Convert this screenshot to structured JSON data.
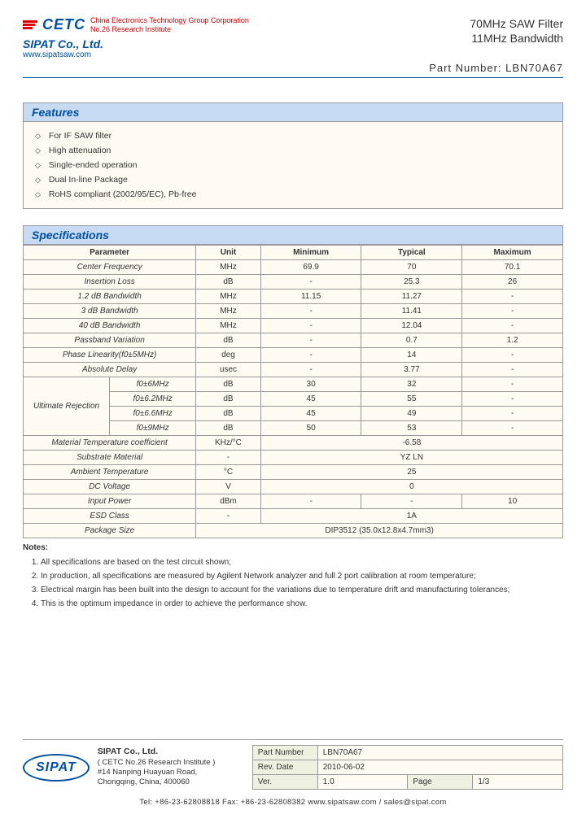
{
  "header": {
    "cetc_name": "CETC",
    "cetc_desc1": "China Electronics Technology Group Corporation",
    "cetc_desc2": "No.26 Research Institute",
    "sipat": "SIPAT Co., Ltd.",
    "url": "www.sipatsaw.com",
    "product_line1": "70MHz SAW Filter",
    "product_line2": "11MHz Bandwidth",
    "part_number_label": "Part Number: LBN70A67"
  },
  "features": {
    "title": "Features",
    "items": [
      "For IF SAW filter",
      "High attenuation",
      "Single-ended operation",
      "Dual In-line Package",
      "RoHS compliant (2002/95/EC), Pb-free"
    ]
  },
  "specs": {
    "title": "Specifications",
    "headers": [
      "Parameter",
      "Unit",
      "Minimum",
      "Typical",
      "Maximum"
    ],
    "rows": [
      {
        "param": "Center Frequency",
        "unit": "MHz",
        "min": "69.9",
        "typ": "70",
        "max": "70.1"
      },
      {
        "param": "Insertion Loss",
        "unit": "dB",
        "min": "-",
        "typ": "25.3",
        "max": "26"
      },
      {
        "param": "1.2 dB Bandwidth",
        "unit": "MHz",
        "min": "11.15",
        "typ": "11.27",
        "max": "-"
      },
      {
        "param": "3 dB Bandwidth",
        "unit": "MHz",
        "min": "-",
        "typ": "11.41",
        "max": "-"
      },
      {
        "param": "40 dB Bandwidth",
        "unit": "MHz",
        "min": "-",
        "typ": "12.04",
        "max": "-"
      },
      {
        "param": "Passband Variation",
        "unit": "dB",
        "min": "-",
        "typ": "0.7",
        "max": "1.2"
      },
      {
        "param": "Phase Linearity(f0±5MHz)",
        "unit": "deg",
        "min": "-",
        "typ": "14",
        "max": "-"
      },
      {
        "param": "Absolute Delay",
        "unit": "usec",
        "min": "-",
        "typ": "3.77",
        "max": "-"
      }
    ],
    "ultimate_rejection": {
      "label": "Ultimate Rejection",
      "subs": [
        {
          "sub": "f0±6MHz",
          "unit": "dB",
          "min": "30",
          "typ": "32",
          "max": "-"
        },
        {
          "sub": "f0±6.2MHz",
          "unit": "dB",
          "min": "45",
          "typ": "55",
          "max": "-"
        },
        {
          "sub": "f0±6.6MHz",
          "unit": "dB",
          "min": "45",
          "typ": "49",
          "max": "-"
        },
        {
          "sub": "f0±9MHz",
          "unit": "dB",
          "min": "50",
          "typ": "53",
          "max": "-"
        }
      ]
    },
    "tail_rows": [
      {
        "param": "Material Temperature coefficient",
        "unit": "KHz/°C",
        "merged": "-6.58"
      },
      {
        "param": "Substrate Material",
        "unit": "-",
        "merged": "YZ LN"
      },
      {
        "param": "Ambient Temperature",
        "unit": "°C",
        "merged": "25"
      },
      {
        "param": "DC Voltage",
        "unit": "V",
        "merged": "0"
      }
    ],
    "input_power": {
      "param": "Input Power",
      "unit": "dBm",
      "min": "-",
      "typ": "-",
      "max": "10"
    },
    "esd": {
      "param": "ESD Class",
      "unit": "-",
      "merged": "1A"
    },
    "pkg": {
      "param": "Package Size",
      "merged": "DIP3512   (35.0x12.8x4.7mm3)"
    }
  },
  "notes": {
    "title": "Notes:",
    "items": [
      "All specifications are based on the test circuit shown;",
      "In production, all specifications are measured by Agilent Network analyzer and full 2 port calibration at room temperature;",
      "Electrical margin has been built into the design to account for the variations due to temperature drift and manufacturing tolerances;",
      "This is the optimum impedance in order to achieve the performance show."
    ]
  },
  "footer": {
    "logo": "SIPAT",
    "company": "SIPAT Co., Ltd.",
    "inst": "( CETC No.26 Research Institute )",
    "addr1": "#14 Nanping Huayuan Road,",
    "addr2": "Chongqing, China, 400060",
    "part_label": "Part Number",
    "part_val": "LBN70A67",
    "rev_label": "Rev. Date",
    "rev_val": "2010-06-02",
    "ver_label": "Ver.",
    "ver_val": "1.0",
    "page_label": "Page",
    "page_val": "1/3",
    "contact": "Tel: +86-23-62808818       Fax: +86-23-62808382          www.sipatsaw.com / sales@sipat.com"
  }
}
